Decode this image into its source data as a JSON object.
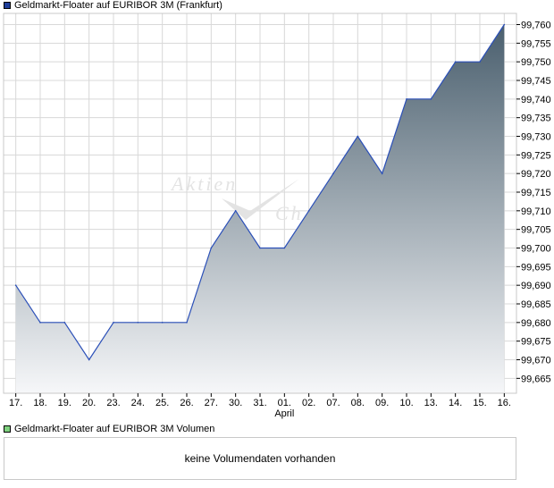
{
  "colors": {
    "price_swatch": "#1f3f9a",
    "volume_swatch": "#7fd17f",
    "line": "#2a4fb8",
    "area_top": "#4a5f6e",
    "area_bottom": "#f6f7f9",
    "grid": "#d8d8d8",
    "watermark": "#e3e3e3"
  },
  "legend": {
    "price_label": "Geldmarkt-Floater auf EURIBOR 3M (Frankfurt)",
    "volume_label": "Geldmarkt-Floater auf EURIBOR 3M Volumen"
  },
  "watermark": {
    "line1": "Aktien",
    "line2": "Ch"
  },
  "volume": {
    "message": "keine Volumendaten vorhanden"
  },
  "chart_data": {
    "type": "area",
    "title": "Geldmarkt-Floater auf EURIBOR 3M (Frankfurt)",
    "categories": [
      "17.",
      "18.",
      "19.",
      "20.",
      "23.",
      "24.",
      "25.",
      "26.",
      "27.",
      "30.",
      "31.",
      "01.",
      "02.",
      "07.",
      "08.",
      "09.",
      "10.",
      "13.",
      "14.",
      "15.",
      "16."
    ],
    "month_label": "April",
    "month_label_index": 11,
    "series": [
      {
        "values": [
          99.69,
          99.68,
          99.68,
          99.67,
          99.68,
          99.68,
          99.68,
          99.68,
          99.7,
          99.71,
          99.7,
          99.7,
          99.71,
          99.72,
          99.73,
          99.72,
          99.74,
          99.74,
          99.75,
          99.75,
          99.76
        ]
      }
    ],
    "yticks": [
      "99,665",
      "99,670",
      "99,675",
      "99,680",
      "99,685",
      "99,690",
      "99,695",
      "99,700",
      "99,705",
      "99,710",
      "99,715",
      "99,720",
      "99,725",
      "99,730",
      "99,735",
      "99,740",
      "99,745",
      "99,750",
      "99,755",
      "99,760"
    ],
    "ylim": [
      99.661,
      99.763
    ],
    "y_axis_position": "right",
    "grid": true,
    "legend": "top-left"
  }
}
